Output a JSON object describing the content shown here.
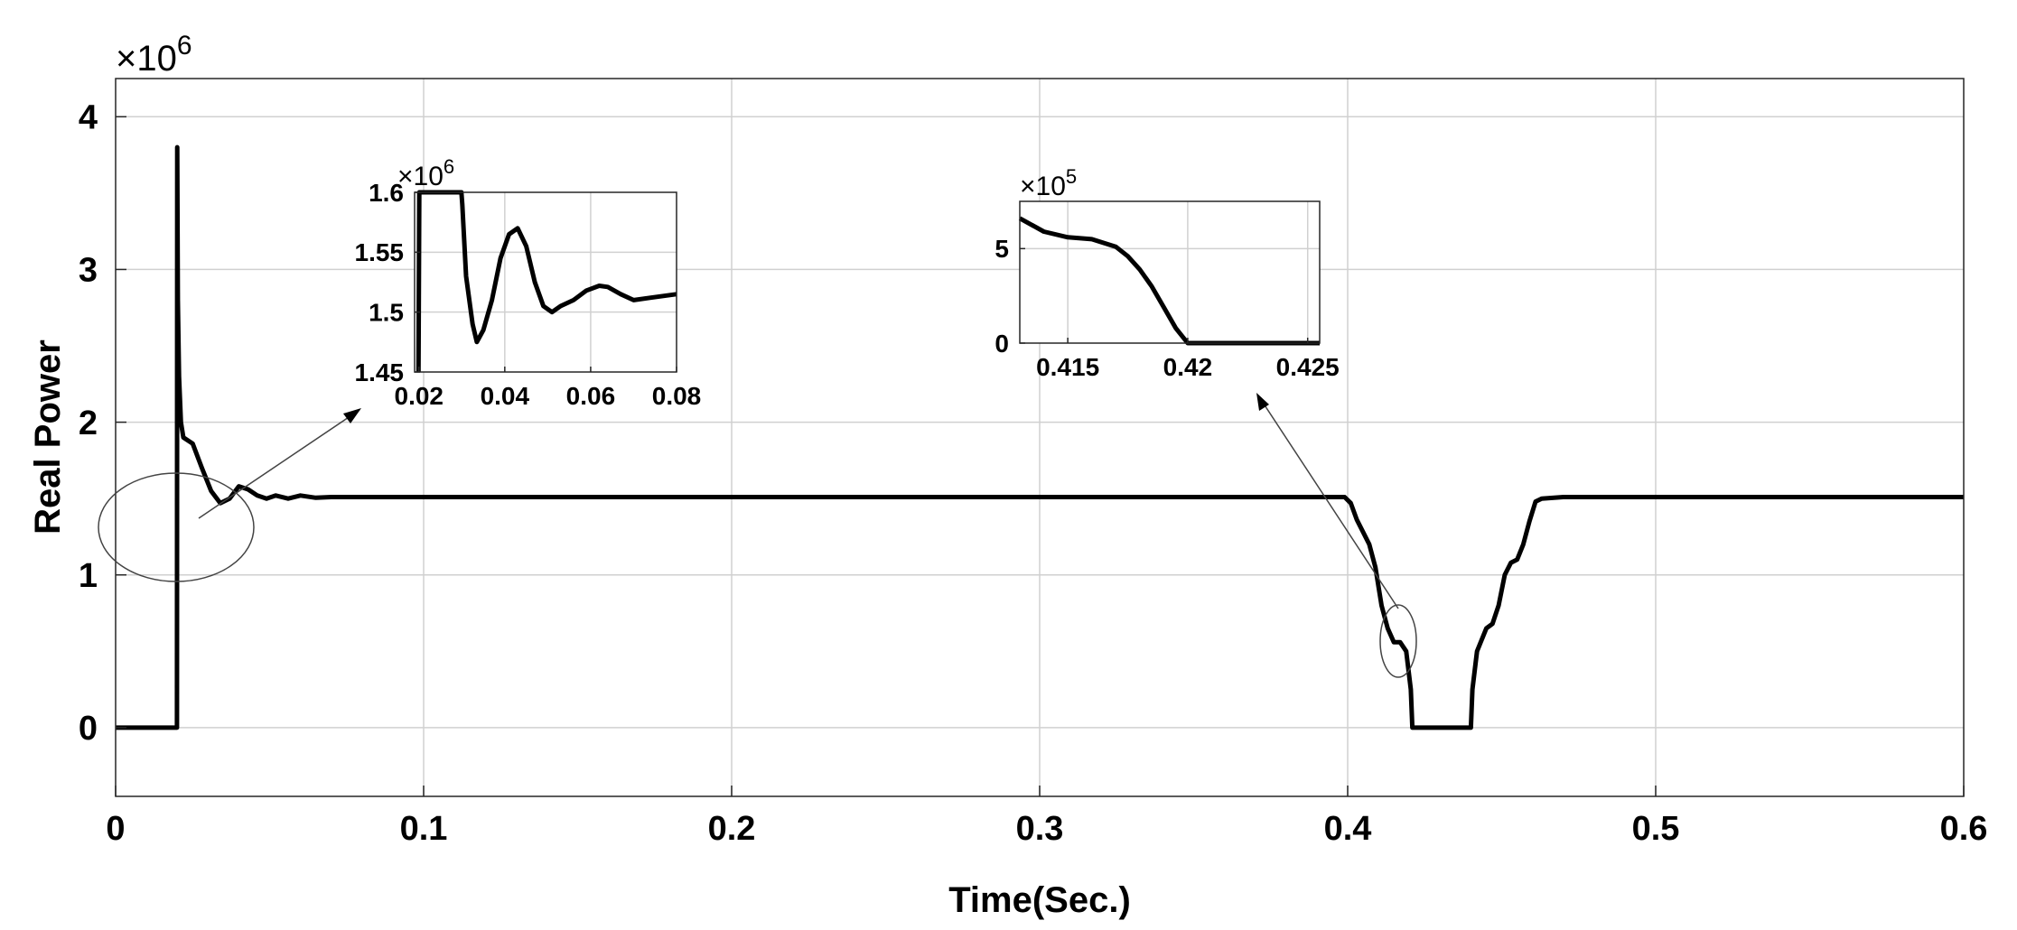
{
  "chart_data": [
    {
      "id": "main",
      "type": "line",
      "title": "",
      "xlabel": "Time(Sec.)",
      "ylabel": "Real Power",
      "xlim": [
        0,
        0.6
      ],
      "ylim": [
        -0.45,
        4.25
      ],
      "y_multiplier": "×10",
      "y_exponent": "6",
      "grid": true,
      "xticks": [
        0,
        0.1,
        0.2,
        0.3,
        0.4,
        0.5,
        0.6
      ],
      "xtick_labels": [
        "0",
        "0.1",
        "0.2",
        "0.3",
        "0.4",
        "0.5",
        "0.6"
      ],
      "yticks": [
        0,
        1,
        2,
        3,
        4
      ],
      "ytick_labels": [
        "0",
        "1",
        "2",
        "3",
        "4"
      ],
      "line_color": "#000000",
      "series": [
        {
          "x": [
            0,
            0.0199,
            0.02,
            0.0202,
            0.0206,
            0.0212,
            0.022,
            0.025,
            0.028,
            0.031,
            0.034,
            0.037,
            0.04,
            0.043,
            0.046,
            0.049,
            0.052,
            0.056,
            0.06,
            0.065,
            0.07,
            0.1,
            0.2,
            0.3,
            0.399,
            0.401,
            0.403,
            0.405,
            0.407,
            0.409,
            0.411,
            0.413,
            0.415,
            0.417,
            0.419,
            0.4205,
            0.421,
            0.44,
            0.4405,
            0.442,
            0.445,
            0.447,
            0.449,
            0.451,
            0.453,
            0.455,
            0.457,
            0.459,
            0.461,
            0.463,
            0.47,
            0.5,
            0.6
          ],
          "y": [
            0,
            0,
            3.8,
            2.8,
            2.3,
            2.0,
            1.9,
            1.86,
            1.7,
            1.55,
            1.47,
            1.5,
            1.58,
            1.56,
            1.52,
            1.5,
            1.52,
            1.5,
            1.52,
            1.505,
            1.51,
            1.51,
            1.51,
            1.51,
            1.51,
            1.47,
            1.36,
            1.28,
            1.2,
            1.05,
            0.8,
            0.65,
            0.56,
            0.56,
            0.5,
            0.25,
            0,
            0,
            0.25,
            0.5,
            0.65,
            0.68,
            0.8,
            1.0,
            1.08,
            1.1,
            1.2,
            1.35,
            1.48,
            1.5,
            1.51,
            1.51,
            1.51
          ]
        }
      ]
    },
    {
      "id": "inset-left",
      "type": "line",
      "title": "",
      "xlim": [
        0.019,
        0.08
      ],
      "ylim": [
        1.45,
        1.6
      ],
      "y_multiplier": "×10",
      "y_exponent": "6",
      "grid": true,
      "xticks": [
        0.02,
        0.04,
        0.06,
        0.08
      ],
      "xtick_labels": [
        "0.02",
        "0.04",
        "0.06",
        "0.08"
      ],
      "yticks": [
        1.45,
        1.5,
        1.55,
        1.6
      ],
      "ytick_labels": [
        "1.45",
        "1.5",
        "1.55",
        "1.6"
      ],
      "series": [
        {
          "x": [
            0.0199,
            0.0201,
            0.0299,
            0.0301,
            0.031,
            0.0325,
            0.0335,
            0.035,
            0.037,
            0.039,
            0.041,
            0.043,
            0.045,
            0.047,
            0.049,
            0.051,
            0.053,
            0.056,
            0.059,
            0.062,
            0.064,
            0.067,
            0.07,
            0.074,
            0.08
          ],
          "y": [
            1.45,
            1.6,
            1.6,
            1.59,
            1.53,
            1.49,
            1.475,
            1.485,
            1.51,
            1.545,
            1.565,
            1.57,
            1.555,
            1.525,
            1.505,
            1.5,
            1.505,
            1.51,
            1.518,
            1.522,
            1.521,
            1.515,
            1.51,
            1.512,
            1.515
          ]
        }
      ]
    },
    {
      "id": "inset-right",
      "type": "line",
      "title": "",
      "xlim": [
        0.413,
        0.4255
      ],
      "ylim": [
        0,
        7.5
      ],
      "y_multiplier": "×10",
      "y_exponent": "5",
      "grid": true,
      "xticks": [
        0.415,
        0.42,
        0.425
      ],
      "xtick_labels": [
        "0.415",
        "0.42",
        "0.425"
      ],
      "yticks": [
        0,
        5
      ],
      "ytick_labels": [
        "0",
        "5"
      ],
      "series": [
        {
          "x": [
            0.413,
            0.414,
            0.415,
            0.416,
            0.417,
            0.4175,
            0.418,
            0.4185,
            0.419,
            0.4195,
            0.42,
            0.4201,
            0.4255
          ],
          "y": [
            6.6,
            5.9,
            5.6,
            5.5,
            5.1,
            4.6,
            3.9,
            3.0,
            1.9,
            0.8,
            0,
            0,
            0
          ]
        }
      ]
    }
  ]
}
